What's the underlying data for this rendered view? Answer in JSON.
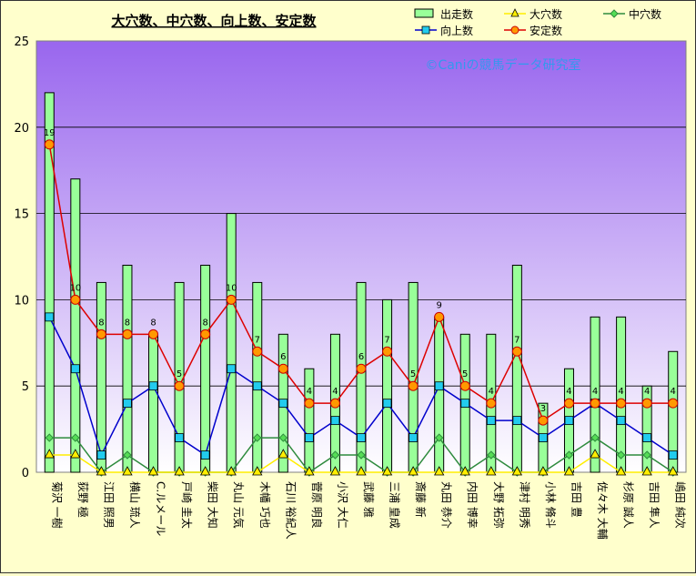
{
  "chart_data": {
    "type": "bar",
    "title": "大穴数、中穴数、向上数、安定数",
    "watermark": "©Caniの競馬データ研究室",
    "ylim": [
      0,
      25
    ],
    "yticks": [
      "0",
      "5",
      "10",
      "15",
      "20",
      "25"
    ],
    "categories": [
      "菊沢 一樹",
      "荻野 極",
      "江田 照男",
      "横山 琉人",
      "C.ルメール",
      "戸崎 圭太",
      "柴田 大知",
      "丸山 元気",
      "木幡 巧也",
      "石川 裕紀人",
      "菅原 明良",
      "小沢 大仁",
      "武藤 雅",
      "三浦 皇成",
      "斎藤 新",
      "丸田 恭介",
      "内田 博幸",
      "大野 拓弥",
      "津村 明秀",
      "小林 脩斗",
      "吉田 豊",
      "佐々木 大輔",
      "杉原 誠人",
      "吉田 隼人",
      "嶋田 純次"
    ],
    "series": [
      {
        "name": "出走数",
        "type": "bar",
        "color": "#99ff99",
        "values": [
          22,
          17,
          11,
          12,
          8,
          11,
          12,
          15,
          11,
          8,
          6,
          8,
          11,
          10,
          11,
          9,
          8,
          8,
          12,
          4,
          6,
          9,
          9,
          5,
          7
        ]
      },
      {
        "name": "大穴数",
        "type": "line",
        "color": "#ffee00",
        "values": [
          1,
          1,
          0,
          0,
          0,
          0,
          0,
          0,
          0,
          1,
          0,
          0,
          0,
          0,
          0,
          0,
          0,
          0,
          0,
          0,
          0,
          1,
          0,
          0,
          0
        ]
      },
      {
        "name": "中穴数",
        "type": "line",
        "color": "#2e8b3d",
        "values": [
          2,
          2,
          0,
          1,
          0,
          0,
          0,
          0,
          2,
          2,
          0,
          1,
          1,
          0,
          0,
          2,
          0,
          1,
          0,
          0,
          1,
          2,
          1,
          1,
          0
        ]
      },
      {
        "name": "向上数",
        "type": "line",
        "color": "#0000cc",
        "values": [
          9,
          6,
          1,
          4,
          5,
          2,
          1,
          6,
          5,
          4,
          2,
          3,
          2,
          4,
          2,
          5,
          4,
          3,
          3,
          2,
          3,
          4,
          3,
          2,
          1
        ]
      },
      {
        "name": "安定数",
        "type": "line",
        "color": "#dd0000",
        "values": [
          19,
          10,
          8,
          8,
          8,
          5,
          8,
          10,
          7,
          6,
          4,
          4,
          6,
          7,
          5,
          9,
          5,
          4,
          7,
          3,
          4,
          4,
          4,
          4,
          4
        ],
        "labels": [
          "19",
          "10",
          "8",
          "8",
          "8",
          "5",
          "8",
          "10",
          "7",
          "6",
          "4",
          "4",
          "6",
          "7",
          "5",
          "9",
          "5",
          "4",
          "7",
          "3",
          "4",
          "4",
          "4",
          "4",
          "4"
        ]
      }
    ],
    "legend": "top-right"
  }
}
